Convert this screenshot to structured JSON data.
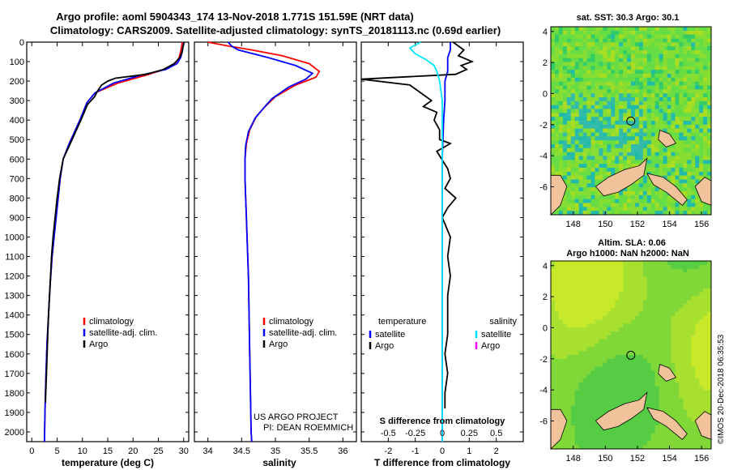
{
  "header": {
    "line1": "Argo profile: aoml 5904343_174 13-Nov-2018 1.771S 151.59E (NRT data)",
    "line2": "Climatology: CARS2009. Satellite-adjusted climatology: synTS_20181113.nc (0.69d earlier)"
  },
  "credit": {
    "project": "US ARGO PROJECT",
    "pi": "PI: DEAN ROEMMICH",
    "timestamp": "©IMOS 20-Dec-2018 06:35:53"
  },
  "colors": {
    "climatology": "#ff0000",
    "satellite": "#0000ff",
    "argo": "#000000",
    "salinity_satellite": "#00e5ff",
    "salinity_argo": "#ff00ff",
    "land": "#f2c29a"
  },
  "depth_axis": {
    "ticks": [
      "0",
      "100",
      "200",
      "300",
      "400",
      "500",
      "600",
      "700",
      "800",
      "900",
      "1000",
      "1100",
      "1200",
      "1300",
      "1400",
      "1500",
      "1600",
      "1700",
      "1800",
      "1900",
      "2000"
    ],
    "range": [
      0,
      2050
    ]
  },
  "chart_data": [
    {
      "type": "line",
      "xlabel": "temperature (deg C)",
      "xlim": [
        -1,
        31
      ],
      "xticks": [
        "0",
        "5",
        "10",
        "15",
        "20",
        "25",
        "30"
      ],
      "ylim": [
        2050,
        0
      ],
      "legend_position": "bottom-center",
      "series": [
        {
          "name": "climatology",
          "color": "#ff0000",
          "x": [
            29.7,
            29.6,
            29.4,
            29.1,
            28.3,
            26.2,
            22.5,
            17,
            12.5,
            10.9,
            9.5,
            7.4,
            6.2,
            5.6,
            5.2,
            4.8,
            4.4,
            4.0,
            3.6,
            3.3,
            3.0,
            2.8,
            2.6,
            2.5
          ],
          "y": [
            0,
            20,
            50,
            80,
            110,
            140,
            170,
            210,
            260,
            310,
            400,
            520,
            600,
            700,
            800,
            900,
            1000,
            1100,
            1250,
            1400,
            1550,
            1700,
            1900,
            2050
          ]
        },
        {
          "name": "satellite-adj. clim.",
          "color": "#0000ff",
          "x": [
            30.0,
            29.9,
            29.7,
            29.4,
            28.7,
            26.5,
            21.5,
            16.2,
            12.5,
            10.9,
            9.5,
            7.4,
            6.2,
            5.6,
            5.2,
            4.8,
            4.4,
            4.0,
            3.6,
            3.3,
            3.0,
            2.8,
            2.6,
            2.5
          ],
          "y": [
            0,
            20,
            50,
            80,
            110,
            140,
            170,
            210,
            260,
            310,
            400,
            520,
            600,
            700,
            800,
            900,
            1000,
            1100,
            1250,
            1400,
            1550,
            1700,
            1900,
            2050
          ]
        },
        {
          "name": "Argo",
          "color": "#000000",
          "x": [
            30.1,
            29.9,
            29.7,
            29.2,
            28.1,
            26.0,
            22.6,
            16.5,
            15.0,
            13.8,
            13.0,
            12.4,
            11.0,
            9.7,
            7.6,
            6.2,
            5.5,
            5.0,
            4.6,
            4.2,
            3.9,
            3.6,
            3.3,
            3.1,
            2.9,
            2.7
          ],
          "y": [
            0,
            20,
            50,
            80,
            110,
            140,
            165,
            185,
            200,
            220,
            250,
            280,
            320,
            400,
            520,
            600,
            700,
            800,
            900,
            1000,
            1100,
            1250,
            1400,
            1550,
            1700,
            1850
          ]
        }
      ],
      "legend": [
        "climatology",
        "satellite-adj. clim.",
        "Argo"
      ]
    },
    {
      "type": "line",
      "xlabel": "salinity",
      "xlim": [
        33.8,
        36.2
      ],
      "xticks": [
        "34",
        "34.5",
        "35",
        "35.5",
        "36"
      ],
      "ylim": [
        2050,
        0
      ],
      "legend_position": "bottom-center",
      "series": [
        {
          "name": "climatology",
          "color": "#ff0000",
          "x": [
            34.0,
            34.3,
            34.65,
            35.1,
            35.5,
            35.65,
            35.6,
            35.3,
            35.0,
            34.85,
            34.72,
            34.62,
            34.57,
            34.55,
            34.55,
            34.56,
            34.57,
            34.58,
            34.6,
            34.61,
            34.62,
            34.63,
            34.64,
            34.65
          ],
          "y": [
            0,
            20,
            40,
            70,
            110,
            150,
            180,
            220,
            280,
            330,
            380,
            450,
            520,
            600,
            700,
            800,
            900,
            1000,
            1200,
            1400,
            1600,
            1800,
            2000,
            2050
          ]
        },
        {
          "name": "satellite-adj. clim.",
          "color": "#0000ff",
          "x": [
            34.3,
            34.35,
            34.45,
            34.9,
            35.3,
            35.55,
            35.45,
            35.2,
            34.95,
            34.82,
            34.7,
            34.6,
            34.56,
            34.55,
            34.55,
            34.56,
            34.57,
            34.58,
            34.6,
            34.61,
            34.62,
            34.63,
            34.64,
            34.65
          ],
          "y": [
            0,
            20,
            40,
            80,
            120,
            160,
            190,
            230,
            290,
            340,
            390,
            460,
            530,
            600,
            700,
            800,
            900,
            1000,
            1200,
            1400,
            1600,
            1800,
            2000,
            2050
          ]
        }
      ],
      "legend": [
        "climatology",
        "satellite-adj. clim.",
        "Argo"
      ]
    },
    {
      "type": "line",
      "xlabel": "T difference from climatology",
      "secondary_xlabel": "S difference from climatology",
      "xlim": [
        -3,
        3
      ],
      "xticks": [
        "-2",
        "-1",
        "0",
        "1",
        "2"
      ],
      "secondary_xticks": [
        "-0.5",
        "-0.25",
        "0",
        "0.25",
        "0.5"
      ],
      "ylim": [
        2050,
        0
      ],
      "legend_groups": [
        {
          "title": "temperature",
          "items": [
            "satellite",
            "Argo"
          ]
        },
        {
          "title": "salinity",
          "items": [
            "satellite",
            "Argo"
          ]
        }
      ],
      "series": [
        {
          "name": "temperature satellite",
          "color": "#0000ff",
          "x": [
            0.3,
            0.3,
            0.2,
            0.2,
            0.1,
            0.1,
            0.05,
            0,
            0,
            0,
            0
          ],
          "y": [
            0,
            40,
            80,
            150,
            200,
            300,
            400,
            600,
            1000,
            1500,
            2050
          ]
        },
        {
          "name": "temperature Argo",
          "color": "#000000",
          "x": [
            0.4,
            0.8,
            0.6,
            1.1,
            0.7,
            0.9,
            0.5,
            -3.0,
            -1.2,
            -0.9,
            -0.4,
            -0.7,
            -0.2,
            -0.3,
            -0.1,
            -0.1,
            0.3,
            -0.2,
            0.2,
            0.3,
            0.1,
            0.5,
            0.2,
            0.0,
            0.3,
            0.2,
            0.3,
            0.2,
            0.2,
            0.2,
            0.1,
            0.2,
            0.1,
            0.1
          ],
          "y": [
            0,
            40,
            70,
            100,
            120,
            140,
            165,
            190,
            220,
            250,
            300,
            330,
            360,
            400,
            450,
            500,
            520,
            560,
            650,
            700,
            750,
            800,
            850,
            900,
            1000,
            1100,
            1200,
            1300,
            1400,
            1500,
            1600,
            1700,
            1800,
            1880
          ]
        },
        {
          "name": "salinity satellite",
          "color": "#00e5ff",
          "x": [
            -0.8,
            -1.2,
            -1.0,
            -0.6,
            -0.3,
            -0.2,
            -0.1,
            0,
            0,
            0,
            0,
            0
          ],
          "y": [
            0,
            30,
            60,
            90,
            120,
            150,
            200,
            300,
            500,
            800,
            1500,
            2050
          ]
        }
      ],
      "legend": [
        "temperature",
        "satellite",
        "Argo",
        "salinity",
        "satellite",
        "Argo"
      ]
    },
    {
      "type": "heatmap",
      "title": "sat. SST: 30.3 Argo: 30.1",
      "xticks": [
        "148",
        "150",
        "152",
        "154",
        "156"
      ],
      "yticks": [
        "4",
        "2",
        "0",
        "-2",
        "-4",
        "-6"
      ],
      "xlim": [
        146.6,
        156.6
      ],
      "ylim": [
        -7.8,
        4.3
      ],
      "marker": {
        "lon": 151.59,
        "lat": -1.771
      }
    },
    {
      "type": "heatmap",
      "title": "Altim. SLA: 0.06",
      "subtitle": "Argo h1000: NaN h2000: NaN",
      "xticks": [
        "148",
        "150",
        "152",
        "154",
        "156"
      ],
      "yticks": [
        "4",
        "2",
        "0",
        "-2",
        "-4",
        "-6"
      ],
      "xlim": [
        146.6,
        156.6
      ],
      "ylim": [
        -7.8,
        4.3
      ],
      "marker": {
        "lon": 151.59,
        "lat": -1.771
      }
    }
  ]
}
